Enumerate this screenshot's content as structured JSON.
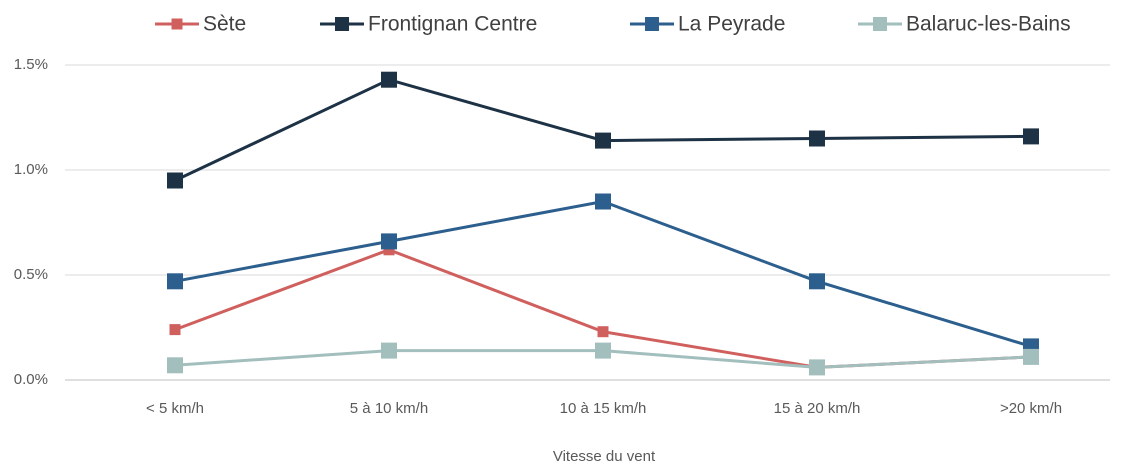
{
  "chart_data": {
    "type": "line",
    "x_label": "Vitesse du vent",
    "categories": [
      "< 5 km/h",
      "5 à 10 km/h",
      "10 à 15 km/h",
      "15 à 20 km/h",
      ">20 km/h"
    ],
    "series": [
      {
        "name": "Sète",
        "color": "#d0605e",
        "values": [
          0.24,
          0.62,
          0.23,
          0.06,
          0.11
        ]
      },
      {
        "name": "Frontignan Centre",
        "color": "#1e3246",
        "values": [
          0.95,
          1.43,
          1.14,
          1.15,
          1.16
        ]
      },
      {
        "name": "La Peyrade",
        "color": "#2c5f8e",
        "values": [
          0.47,
          0.66,
          0.85,
          0.47,
          0.16
        ]
      },
      {
        "name": "Balaruc-les-Bains",
        "color": "#a2bfbd",
        "values": [
          0.07,
          0.14,
          0.14,
          0.06,
          0.11
        ]
      }
    ],
    "ylim": [
      0,
      1.5
    ],
    "yticks": [
      {
        "value": 0,
        "label": "0.0%"
      },
      {
        "value": 0.5,
        "label": "0.5%"
      },
      {
        "value": 1,
        "label": "1.0%"
      },
      {
        "value": 1.5,
        "label": "1.5%"
      }
    ],
    "grid": true,
    "legend": "top"
  }
}
